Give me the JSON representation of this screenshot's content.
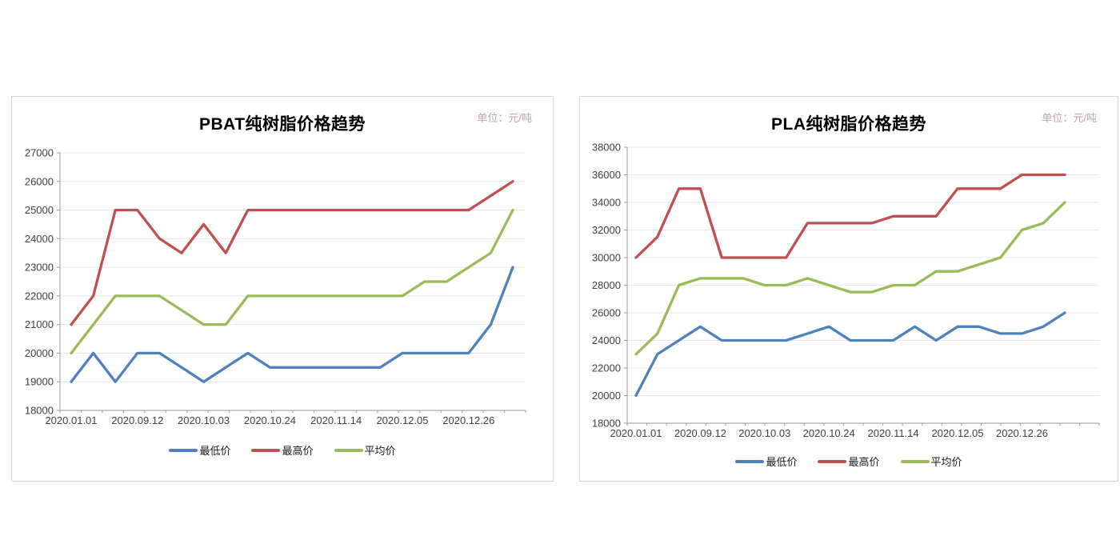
{
  "page": {
    "background": "#ffffff"
  },
  "colors": {
    "series_min": "#4F81BD",
    "series_max": "#C0504D",
    "series_avg": "#9BBB59",
    "gridline": "#e7e7e7",
    "axis_line": "#9b9b9b",
    "tick_label": "#3f3f3f",
    "unit_text": "#bda59b",
    "panel_border": "#d4d4d4"
  },
  "chart_data": [
    {
      "type": "line",
      "title": "PBAT纯树脂价格趋势",
      "unit": "单位：元/吨",
      "x_tick_labels": [
        "2020.01.01",
        "2020.09.12",
        "2020.10.03",
        "2020.10.24",
        "2020.11.14",
        "2020.12.05",
        "2020.12.26"
      ],
      "x_tick_point_indices": [
        0,
        3,
        6,
        9,
        12,
        15,
        18
      ],
      "n_points": 21,
      "ylim": [
        18000,
        27000
      ],
      "y_step": 1000,
      "grid": "horizontal",
      "legend_position": "bottom",
      "series": [
        {
          "key": "min",
          "name": "最低价",
          "color": "#4F81BD",
          "values": [
            19000,
            20000,
            19000,
            20000,
            20000,
            19500,
            19000,
            19500,
            20000,
            19500,
            19500,
            19500,
            19500,
            19500,
            19500,
            20000,
            20000,
            20000,
            20000,
            21000,
            23000
          ]
        },
        {
          "key": "max",
          "name": "最高价",
          "color": "#C0504D",
          "values": [
            21000,
            22000,
            25000,
            25000,
            24000,
            23500,
            24500,
            23500,
            25000,
            25000,
            25000,
            25000,
            25000,
            25000,
            25000,
            25000,
            25000,
            25000,
            25000,
            25500,
            26000
          ]
        },
        {
          "key": "avg",
          "name": "平均价",
          "color": "#9BBB59",
          "values": [
            20000,
            21000,
            22000,
            22000,
            22000,
            21500,
            21000,
            21000,
            22000,
            22000,
            22000,
            22000,
            22000,
            22000,
            22000,
            22000,
            22500,
            22500,
            23000,
            23500,
            25000
          ]
        }
      ]
    },
    {
      "type": "line",
      "title": "PLA纯树脂价格趋势",
      "unit": "单位：元/吨",
      "x_tick_labels": [
        "2020.01.01",
        "2020.09.12",
        "2020.10.03",
        "2020.10.24",
        "2020.11.14",
        "2020.12.05",
        "2020.12.26"
      ],
      "x_tick_point_indices": [
        0,
        3,
        6,
        9,
        12,
        15,
        18
      ],
      "n_points": 21,
      "ylim": [
        18000,
        38000
      ],
      "y_step": 2000,
      "grid": "horizontal",
      "legend_position": "bottom",
      "series": [
        {
          "key": "min",
          "name": "最低价",
          "color": "#4F81BD",
          "values": [
            20000,
            23000,
            24000,
            25000,
            24000,
            24000,
            24000,
            24000,
            24500,
            25000,
            24000,
            24000,
            24000,
            25000,
            24000,
            25000,
            25000,
            24500,
            24500,
            25000,
            26000
          ]
        },
        {
          "key": "max",
          "name": "最高价",
          "color": "#C0504D",
          "values": [
            30000,
            31500,
            35000,
            35000,
            30000,
            30000,
            30000,
            30000,
            32500,
            32500,
            32500,
            32500,
            33000,
            33000,
            33000,
            35000,
            35000,
            35000,
            36000,
            36000,
            36000
          ]
        },
        {
          "key": "avg",
          "name": "平均价",
          "color": "#9BBB59",
          "values": [
            23000,
            24500,
            28000,
            28500,
            28500,
            28500,
            28000,
            28000,
            28500,
            28000,
            27500,
            27500,
            28000,
            28000,
            29000,
            29000,
            29500,
            30000,
            32000,
            32500,
            34000
          ]
        }
      ]
    }
  ]
}
